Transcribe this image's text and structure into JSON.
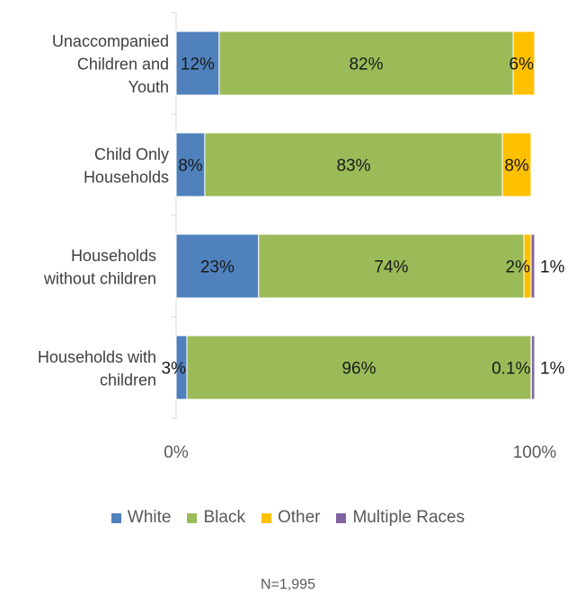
{
  "chart_data": {
    "type": "bar",
    "orientation": "horizontal",
    "stacked": "percent",
    "categories": [
      "Unaccompanied Children and Youth",
      "Child Only Households",
      "Households without children",
      "Households with children"
    ],
    "category_lines": [
      [
        "Unaccompanied",
        "Children and",
        "Youth"
      ],
      [
        "Child Only",
        "Households"
      ],
      [
        "Households",
        "without children"
      ],
      [
        "Households with",
        "children"
      ]
    ],
    "series": [
      {
        "name": "White",
        "color": "#4f81bd",
        "values": [
          12,
          8,
          23,
          3
        ],
        "labels": [
          "12%",
          "8%",
          "23%",
          "3%"
        ]
      },
      {
        "name": "Black",
        "color": "#9bbb59",
        "values": [
          82,
          83,
          74,
          96
        ],
        "labels": [
          "82%",
          "83%",
          "74%",
          "96%"
        ]
      },
      {
        "name": "Other",
        "color": "#ffc000",
        "values": [
          6,
          8,
          2,
          0.1
        ],
        "labels": [
          "6%",
          "8%",
          "2%",
          "0.1%"
        ]
      },
      {
        "name": "Multiple Races",
        "color": "#8064a2",
        "values": [
          0,
          0,
          1,
          1
        ],
        "labels": [
          "",
          "",
          "1%",
          "1%"
        ]
      }
    ],
    "x_ticks": [
      "0%",
      "100%"
    ],
    "xlim": [
      0,
      100
    ],
    "grid": false,
    "legend_position": "bottom"
  },
  "note": "N=1,995"
}
